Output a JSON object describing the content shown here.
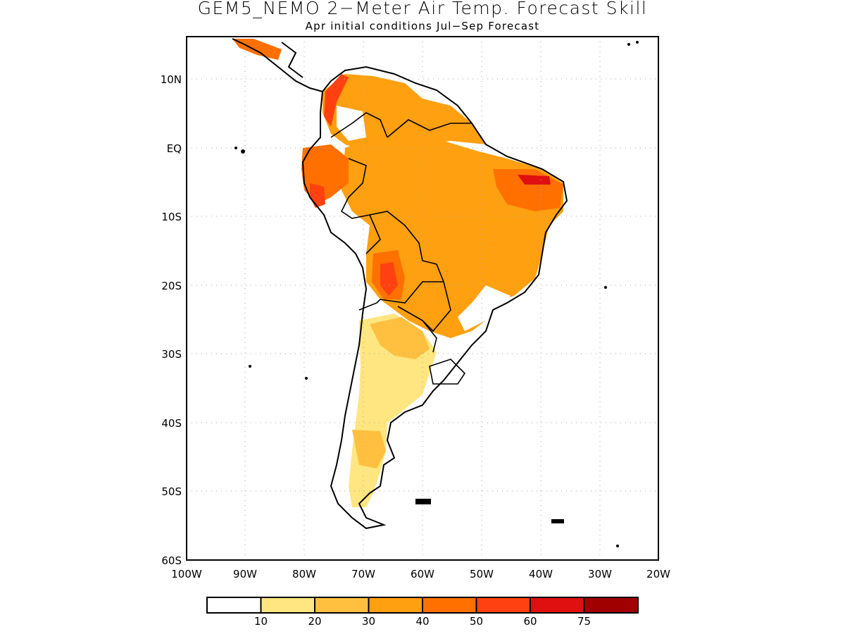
{
  "title": "GEM5_NEMO 2−Meter Air Temp. Forecast Skill",
  "subtitle": "Apr initial conditions  Jul−Sep Forecast",
  "lat_ticks": [
    "10N",
    "EQ",
    "10S",
    "20S",
    "30S",
    "40S",
    "50S",
    "60S"
  ],
  "lon_ticks": [
    "100W",
    "90W",
    "80W",
    "70W",
    "60W",
    "50W",
    "40W",
    "30W",
    "20W"
  ],
  "colorbar": {
    "labels": [
      "10",
      "20",
      "30",
      "40",
      "50",
      "60",
      "75"
    ],
    "colors": [
      "#ffffff",
      "#ffe680",
      "#ffc040",
      "#ffa010",
      "#ff7000",
      "#ff4010",
      "#e01010",
      "#a00000"
    ]
  }
}
